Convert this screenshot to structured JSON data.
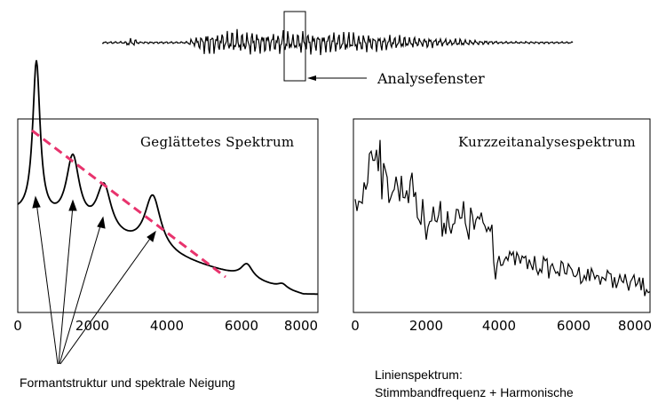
{
  "waveform": {
    "window_label": "Analysefenster"
  },
  "left_panel": {
    "title": "Geglättetes Spektrum",
    "x_ticks": [
      "0",
      "2000",
      "4000",
      "6000",
      "8000"
    ],
    "caption": "Formantstruktur und spektrale Neigung"
  },
  "right_panel": {
    "title": "Kurzzeitanalysespektrum",
    "x_ticks": [
      "0",
      "2000",
      "4000",
      "6000",
      "8000"
    ],
    "caption_line1": "Linienspektrum:",
    "caption_line2": "Stimmbandfrequenz + Harmonische"
  },
  "colors": {
    "tilt_line": "#e8336d",
    "ink": "#000000"
  },
  "icons": [
    "arrow-left-icon",
    "arrow-up-icon"
  ]
}
